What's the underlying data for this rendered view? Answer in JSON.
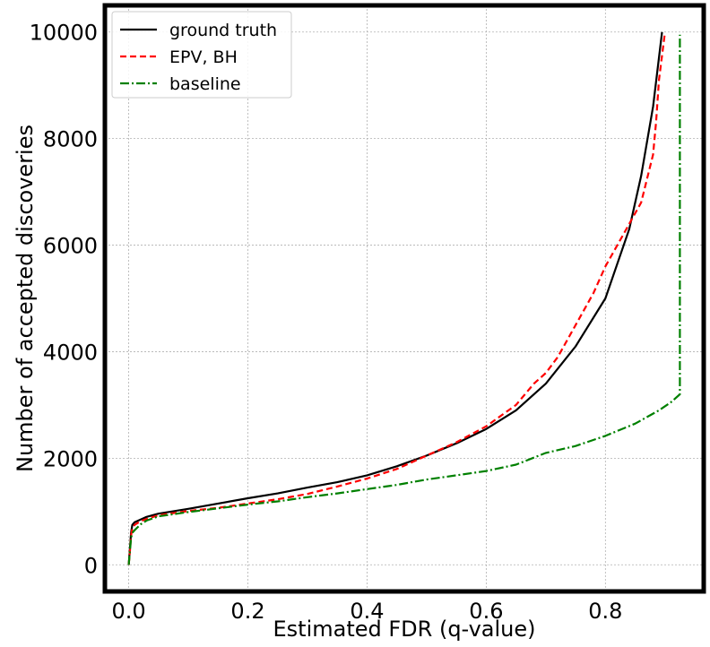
{
  "chart_data": {
    "type": "line",
    "title": "",
    "xlabel": "Estimated FDR (q-value)",
    "ylabel": "Number of accepted discoveries",
    "xlim": [
      -0.04,
      0.965
    ],
    "ylim": [
      -500,
      10500
    ],
    "xticks": [
      0.0,
      0.2,
      0.4,
      0.6,
      0.8
    ],
    "xtick_labels": [
      "0.0",
      "0.2",
      "0.4",
      "0.6",
      "0.8"
    ],
    "yticks": [
      0,
      2000,
      4000,
      6000,
      8000,
      10000
    ],
    "ytick_labels": [
      "0",
      "2000",
      "4000",
      "6000",
      "8000",
      "10000"
    ],
    "grid": true,
    "legend_position": "top-left",
    "series": [
      {
        "name": "ground truth",
        "color": "#000000",
        "style": "solid",
        "x": [
          0.0,
          0.002,
          0.004,
          0.006,
          0.01,
          0.02,
          0.03,
          0.05,
          0.1,
          0.15,
          0.2,
          0.25,
          0.3,
          0.35,
          0.4,
          0.45,
          0.5,
          0.55,
          0.6,
          0.65,
          0.7,
          0.75,
          0.8,
          0.84,
          0.86,
          0.88,
          0.895
        ],
        "y": [
          0,
          300,
          600,
          750,
          800,
          850,
          900,
          960,
          1050,
          1150,
          1250,
          1340,
          1450,
          1550,
          1680,
          1850,
          2050,
          2280,
          2550,
          2900,
          3400,
          4100,
          5000,
          6300,
          7300,
          8600,
          10000
        ]
      },
      {
        "name": "EPV, BH",
        "color": "#ff0000",
        "style": "dashed",
        "x": [
          0.0,
          0.002,
          0.004,
          0.006,
          0.01,
          0.02,
          0.03,
          0.05,
          0.1,
          0.15,
          0.2,
          0.25,
          0.3,
          0.35,
          0.4,
          0.45,
          0.5,
          0.55,
          0.6,
          0.65,
          0.68,
          0.7,
          0.72,
          0.75,
          0.78,
          0.8,
          0.83,
          0.86,
          0.88,
          0.885,
          0.89,
          0.9
        ],
        "y": [
          0,
          250,
          550,
          680,
          750,
          820,
          860,
          930,
          1010,
          1070,
          1150,
          1230,
          1330,
          1470,
          1620,
          1800,
          2050,
          2300,
          2600,
          3000,
          3400,
          3600,
          3900,
          4500,
          5100,
          5600,
          6200,
          6800,
          7700,
          8300,
          9100,
          10000
        ]
      },
      {
        "name": "baseline",
        "color": "#008000",
        "style": "dashdot",
        "x": [
          0.0,
          0.002,
          0.004,
          0.006,
          0.01,
          0.02,
          0.03,
          0.05,
          0.1,
          0.15,
          0.2,
          0.25,
          0.3,
          0.35,
          0.4,
          0.45,
          0.5,
          0.55,
          0.6,
          0.65,
          0.7,
          0.75,
          0.8,
          0.85,
          0.89,
          0.91,
          0.925,
          0.925
        ],
        "y": [
          0,
          250,
          500,
          600,
          650,
          760,
          830,
          910,
          990,
          1060,
          1130,
          1190,
          1270,
          1340,
          1420,
          1500,
          1600,
          1680,
          1760,
          1880,
          2100,
          2230,
          2420,
          2650,
          2900,
          3050,
          3200,
          9950
        ]
      }
    ]
  }
}
